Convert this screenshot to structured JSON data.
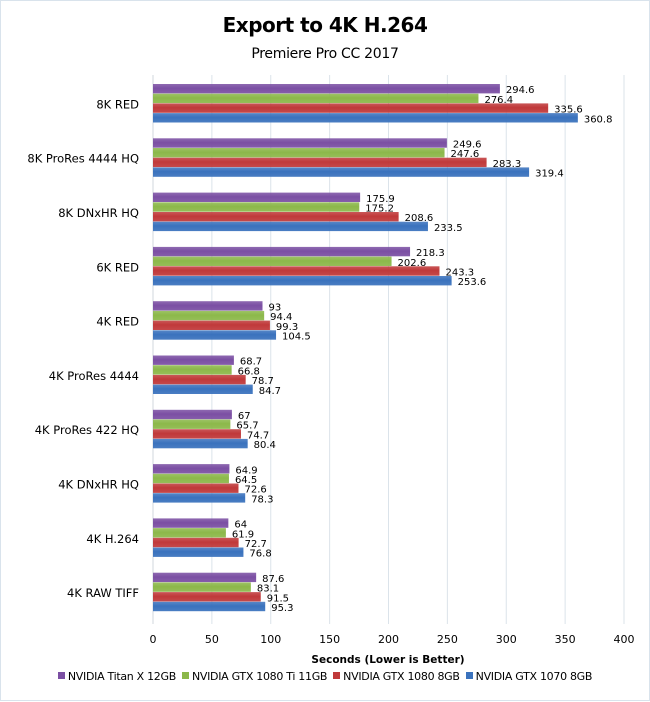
{
  "chart_data": {
    "type": "bar",
    "orientation": "horizontal",
    "title": "Export to 4K H.264",
    "subtitle": "Premiere Pro CC 2017",
    "xlabel": "Seconds  (Lower is Better)",
    "ylabel": "",
    "xlim": [
      0,
      400
    ],
    "x_ticks": [
      "0",
      "50",
      "100",
      "150",
      "200",
      "250",
      "300",
      "350",
      "400"
    ],
    "grid": true,
    "legend_position": "bottom",
    "categories": [
      "8K RED",
      "8K ProRes 4444 HQ",
      "8K DNxHR HQ",
      "6K RED",
      "4K RED",
      "4K ProRes 4444",
      "4K ProRes 422 HQ",
      "4K DNxHR HQ",
      "4K H.264",
      "4K RAW TIFF"
    ],
    "series": [
      {
        "name": "NVIDIA Titan X 12GB",
        "color": "#7b4fa3",
        "values": [
          294.6,
          249.6,
          175.9,
          218.3,
          93,
          68.7,
          67,
          64.9,
          64,
          87.6
        ],
        "labels": [
          "294.6",
          "249.6",
          "175.9",
          "218.3",
          "93",
          "68.7",
          "67",
          "64.9",
          "64",
          "87.6"
        ]
      },
      {
        "name": "NVIDIA GTX 1080 Ti 11GB",
        "color": "#8cb84a",
        "values": [
          276.4,
          247.6,
          175.2,
          202.6,
          94.4,
          66.8,
          65.7,
          64.5,
          61.9,
          83.1
        ],
        "labels": [
          "276.4",
          "247.6",
          "175.2",
          "202.6",
          "94.4",
          "66.8",
          "65.7",
          "64.5",
          "61.9",
          "83.1"
        ]
      },
      {
        "name": "NVIDIA GTX 1080 8GB",
        "color": "#c0393a",
        "values": [
          335.6,
          283.3,
          208.6,
          243.3,
          99.3,
          78.7,
          74.7,
          72.6,
          72.7,
          91.5
        ],
        "labels": [
          "335.6",
          "283.3",
          "208.6",
          "243.3",
          "99.3",
          "78.7",
          "74.7",
          "72.6",
          "72.7",
          "91.5"
        ]
      },
      {
        "name": "NVIDIA GTX 1070 8GB",
        "color": "#3a72bd",
        "values": [
          360.8,
          319.4,
          233.5,
          253.6,
          104.5,
          84.7,
          80.4,
          78.3,
          76.8,
          95.3
        ],
        "labels": [
          "360.8",
          "319.4",
          "233.5",
          "253.6",
          "104.5",
          "84.7",
          "80.4",
          "78.3",
          "76.8",
          "95.3"
        ]
      }
    ]
  }
}
